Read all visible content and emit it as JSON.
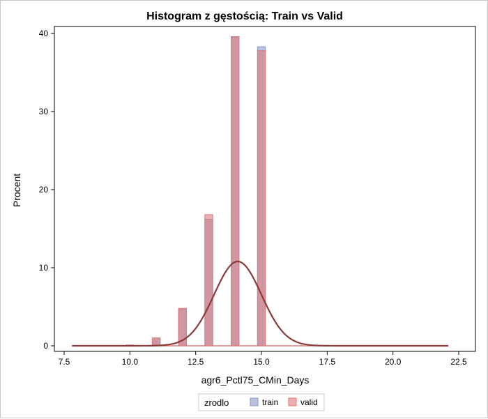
{
  "chart_data": {
    "type": "bar",
    "title": "Histogram z gęstością: Train vs Valid",
    "xlabel": "agr6_Pctl75_CMin_Days",
    "ylabel": "Procent",
    "xlim": [
      7.5,
      22.5
    ],
    "ylim": [
      0,
      40
    ],
    "x_ticks": [
      "7.5",
      "10.0",
      "12.5",
      "15.0",
      "17.5",
      "20.0",
      "22.5"
    ],
    "y_ticks": [
      "0",
      "10",
      "20",
      "30",
      "40"
    ],
    "grid": false,
    "legend_position": "bottom",
    "legend_title": "zrodlo",
    "bin_width": 0.3,
    "x": [
      10,
      11,
      12,
      13,
      14,
      15
    ],
    "series": [
      {
        "name": "train",
        "color": "#8c98c8",
        "values": [
          0.1,
          1.0,
          4.7,
          16.2,
          39.5,
          38.3
        ]
      },
      {
        "name": "valid",
        "color": "#e07a7a",
        "values": [
          0.1,
          1.0,
          4.8,
          16.8,
          39.6,
          37.8
        ]
      }
    ],
    "density_curve": {
      "color": "#8b3a3a",
      "mean": 14.1,
      "sd": 0.9,
      "peak": 10.8,
      "x_range": [
        7.8,
        22.1
      ]
    }
  }
}
